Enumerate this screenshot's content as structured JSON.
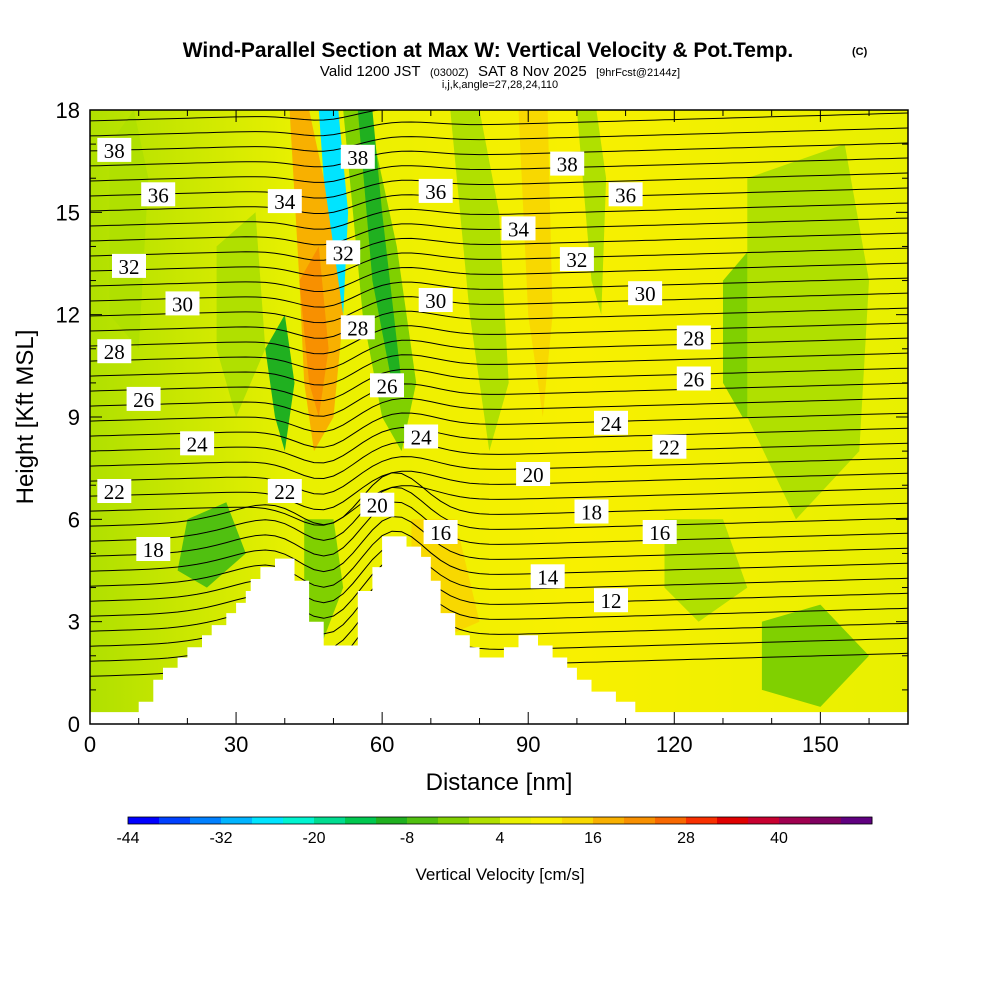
{
  "title": {
    "main": "Wind-Parallel Section at Max W: Vertical Velocity & Pot.Temp.",
    "copyright": "(C)",
    "sub_prefix": "Valid 1200 JST",
    "sub_utc": "(0300Z)",
    "sub_date": "SAT 8 Nov 2025",
    "sub_fcst": "[9hrFcst@2144z]",
    "indices": "i,j,k,angle=27,28,24,110"
  },
  "chart_data": {
    "type": "heatmap",
    "xlabel": "Distance [nm]",
    "ylabel": "Height [Kft MSL]",
    "xlim": [
      0,
      168
    ],
    "ylim": [
      0,
      18
    ],
    "x_ticks": [
      "0",
      "30",
      "60",
      "90",
      "120",
      "150"
    ],
    "x_tick_values": [
      0,
      30,
      60,
      90,
      120,
      150
    ],
    "y_ticks": [
      "0",
      "3",
      "6",
      "9",
      "12",
      "15",
      "18"
    ],
    "y_tick_values": [
      0,
      3,
      6,
      9,
      12,
      15,
      18
    ],
    "colorbar": {
      "label": "Vertical Velocity [cm/s]",
      "tick_labels": [
        "-44",
        "-32",
        "-20",
        "-8",
        "4",
        "16",
        "28",
        "40"
      ],
      "colors": [
        "#0000ff",
        "#0040ff",
        "#0080ff",
        "#00b4ff",
        "#00e4ff",
        "#00f4d0",
        "#00dc90",
        "#00c850",
        "#20b020",
        "#50c010",
        "#80d000",
        "#b0e000",
        "#e8f000",
        "#f8f000",
        "#f8d800",
        "#f8b000",
        "#f89000",
        "#f86800",
        "#f83000",
        "#e00000",
        "#c80030",
        "#a00050",
        "#800060",
        "#600080"
      ]
    },
    "terrain": [
      [
        0,
        0.35
      ],
      [
        10,
        0.35
      ],
      [
        10,
        0.65
      ],
      [
        13,
        0.65
      ],
      [
        13,
        1.3
      ],
      [
        15,
        1.3
      ],
      [
        15,
        1.65
      ],
      [
        18,
        1.65
      ],
      [
        18,
        1.95
      ],
      [
        20,
        1.95
      ],
      [
        20,
        2.25
      ],
      [
        23,
        2.25
      ],
      [
        23,
        2.6
      ],
      [
        25,
        2.6
      ],
      [
        25,
        2.9
      ],
      [
        28,
        2.9
      ],
      [
        28,
        3.25
      ],
      [
        30,
        3.25
      ],
      [
        30,
        3.55
      ],
      [
        32,
        3.55
      ],
      [
        32,
        3.9
      ],
      [
        33,
        3.9
      ],
      [
        33,
        4.25
      ],
      [
        35,
        4.25
      ],
      [
        35,
        4.6
      ],
      [
        38,
        4.6
      ],
      [
        38,
        4.85
      ],
      [
        42,
        4.85
      ],
      [
        42,
        4.2
      ],
      [
        45,
        4.2
      ],
      [
        45,
        3.0
      ],
      [
        48,
        3.0
      ],
      [
        48,
        2.3
      ],
      [
        50,
        2.3
      ],
      [
        50,
        2.3
      ],
      [
        55,
        2.3
      ],
      [
        55,
        3.9
      ],
      [
        58,
        3.9
      ],
      [
        58,
        4.6
      ],
      [
        60,
        4.6
      ],
      [
        60,
        5.5
      ],
      [
        65,
        5.5
      ],
      [
        65,
        5.2
      ],
      [
        68,
        5.2
      ],
      [
        68,
        4.9
      ],
      [
        70,
        4.9
      ],
      [
        70,
        4.2
      ],
      [
        72,
        4.2
      ],
      [
        72,
        3.25
      ],
      [
        75,
        3.25
      ],
      [
        75,
        2.6
      ],
      [
        78,
        2.6
      ],
      [
        78,
        2.25
      ],
      [
        80,
        2.25
      ],
      [
        80,
        1.95
      ],
      [
        85,
        1.95
      ],
      [
        85,
        2.25
      ],
      [
        88,
        2.25
      ],
      [
        88,
        2.6
      ],
      [
        92,
        2.6
      ],
      [
        92,
        2.3
      ],
      [
        95,
        2.3
      ],
      [
        95,
        1.95
      ],
      [
        98,
        1.95
      ],
      [
        98,
        1.65
      ],
      [
        100,
        1.65
      ],
      [
        100,
        1.3
      ],
      [
        103,
        1.3
      ],
      [
        103,
        0.95
      ],
      [
        108,
        0.95
      ],
      [
        108,
        0.65
      ],
      [
        112,
        0.65
      ],
      [
        112,
        0.35
      ],
      [
        168,
        0.35
      ]
    ],
    "theta_labels": [
      {
        "text": "38",
        "x": 5,
        "y": 16.8
      },
      {
        "text": "36",
        "x": 14,
        "y": 15.5
      },
      {
        "text": "32",
        "x": 8,
        "y": 13.4
      },
      {
        "text": "30",
        "x": 19,
        "y": 12.3
      },
      {
        "text": "28",
        "x": 5,
        "y": 10.9
      },
      {
        "text": "26",
        "x": 11,
        "y": 9.5
      },
      {
        "text": "24",
        "x": 22,
        "y": 8.2
      },
      {
        "text": "22",
        "x": 5,
        "y": 6.8
      },
      {
        "text": "18",
        "x": 13,
        "y": 5.1
      },
      {
        "text": "38",
        "x": 55,
        "y": 16.6
      },
      {
        "text": "34",
        "x": 40,
        "y": 15.3
      },
      {
        "text": "36",
        "x": 71,
        "y": 15.6
      },
      {
        "text": "32",
        "x": 52,
        "y": 13.8
      },
      {
        "text": "28",
        "x": 55,
        "y": 11.6
      },
      {
        "text": "30",
        "x": 71,
        "y": 12.4
      },
      {
        "text": "26",
        "x": 61,
        "y": 9.9
      },
      {
        "text": "24",
        "x": 68,
        "y": 8.4
      },
      {
        "text": "22",
        "x": 40,
        "y": 6.8
      },
      {
        "text": "20",
        "x": 59,
        "y": 6.4
      },
      {
        "text": "16",
        "x": 72,
        "y": 5.6
      },
      {
        "text": "38",
        "x": 98,
        "y": 16.4
      },
      {
        "text": "34",
        "x": 88,
        "y": 14.5
      },
      {
        "text": "36",
        "x": 110,
        "y": 15.5
      },
      {
        "text": "32",
        "x": 100,
        "y": 13.6
      },
      {
        "text": "30",
        "x": 114,
        "y": 12.6
      },
      {
        "text": "28",
        "x": 124,
        "y": 11.3
      },
      {
        "text": "26",
        "x": 124,
        "y": 10.1
      },
      {
        "text": "24",
        "x": 107,
        "y": 8.8
      },
      {
        "text": "22",
        "x": 119,
        "y": 8.1
      },
      {
        "text": "20",
        "x": 91,
        "y": 7.3
      },
      {
        "text": "18",
        "x": 103,
        "y": 6.2
      },
      {
        "text": "16",
        "x": 117,
        "y": 5.6
      },
      {
        "text": "14",
        "x": 94,
        "y": 4.3
      },
      {
        "text": "12",
        "x": 107,
        "y": 3.6
      }
    ]
  }
}
